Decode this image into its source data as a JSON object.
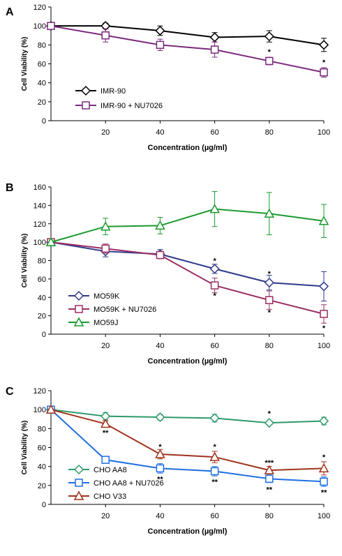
{
  "chart_data": [
    {
      "panel": "A",
      "type": "line",
      "x": [
        0,
        20,
        40,
        60,
        80,
        100
      ],
      "xticks": [
        "20",
        "40",
        "60",
        "80",
        "100"
      ],
      "xlabel": "Concentration (µg/ml)",
      "ylabel": "Cell Viability (%)",
      "ylim": [
        0,
        120
      ],
      "yticks": [
        "0",
        "20",
        "40",
        "60",
        "80",
        "100",
        "120"
      ],
      "legend_position": "bottom-left",
      "series": [
        {
          "name": "IMR-90",
          "color": "#000000",
          "marker": "diamond",
          "values": [
            100,
            100,
            95,
            88,
            89,
            80
          ],
          "errors": [
            0,
            3,
            5,
            5,
            6,
            7
          ]
        },
        {
          "name": "IMR-90 + NU7026",
          "color": "#7b2a7d",
          "marker": "square",
          "values": [
            100,
            90,
            80,
            75,
            63,
            51
          ],
          "errors": [
            0,
            7,
            6,
            8,
            4,
            5
          ]
        }
      ],
      "annotations": [
        {
          "x": 80,
          "y": 73,
          "text": "*"
        },
        {
          "x": 100,
          "y": 62,
          "text": "*"
        }
      ]
    },
    {
      "panel": "B",
      "type": "line",
      "x": [
        0,
        20,
        40,
        60,
        80,
        100
      ],
      "xticks": [
        "20",
        "40",
        "60",
        "80",
        "100"
      ],
      "xlabel": "Concentration (µg/ml)",
      "ylabel": "Cell Viability (%)",
      "ylim": [
        0,
        160
      ],
      "yticks": [
        "0",
        "20",
        "40",
        "60",
        "80",
        "100",
        "120",
        "140",
        "160"
      ],
      "legend_position": "bottom-left",
      "series": [
        {
          "name": "MO59K",
          "color": "#2e3a8c",
          "marker": "diamond",
          "values": [
            100,
            90,
            87,
            71,
            56,
            52
          ],
          "errors": [
            0,
            6,
            5,
            5,
            8,
            16
          ]
        },
        {
          "name": "MO59K + NU7026",
          "color": "#9a2f64",
          "marker": "square",
          "values": [
            100,
            93,
            86,
            53,
            37,
            22
          ],
          "errors": [
            0,
            5,
            4,
            8,
            10,
            10
          ]
        },
        {
          "name": "MO59J",
          "color": "#1a9a2e",
          "marker": "triangle",
          "values": [
            100,
            117,
            118,
            136,
            131,
            123
          ],
          "errors": [
            0,
            9,
            9,
            19,
            23,
            18
          ]
        }
      ],
      "annotations": [
        {
          "x": 60,
          "y": 80,
          "text": "*"
        },
        {
          "x": 60,
          "y": 42,
          "text": "*"
        },
        {
          "x": 80,
          "y": 66,
          "text": "*"
        },
        {
          "x": 80,
          "y": 24,
          "text": "*"
        },
        {
          "x": 100,
          "y": 7,
          "text": "*"
        }
      ]
    },
    {
      "panel": "C",
      "type": "line",
      "x": [
        0,
        20,
        40,
        60,
        80,
        100
      ],
      "xticks": [
        "20",
        "40",
        "60",
        "80",
        "100"
      ],
      "xlabel": "Concentration (µg/ml)",
      "ylabel": "Cell Viability (%)",
      "ylim": [
        0,
        120
      ],
      "yticks": [
        "0",
        "20",
        "40",
        "60",
        "80",
        "100",
        "120"
      ],
      "legend_position": "bottom-left",
      "series": [
        {
          "name": "CHO AA8",
          "color": "#2e9a6a",
          "marker": "diamond",
          "values": [
            100,
            93,
            92,
            91,
            86,
            88
          ],
          "errors": [
            0,
            4,
            3,
            4,
            2,
            4
          ]
        },
        {
          "name": "CHO AA8 + NU7026",
          "color": "#1f6fe0",
          "marker": "square",
          "values": [
            100,
            47,
            38,
            35,
            27,
            24
          ],
          "errors": [
            0,
            3,
            5,
            5,
            4,
            5
          ]
        },
        {
          "name": "CHO V33",
          "color": "#a0321c",
          "marker": "triangle",
          "values": [
            100,
            85,
            53,
            50,
            36,
            38
          ],
          "errors": [
            0,
            3,
            5,
            6,
            4,
            7
          ]
        }
      ],
      "annotations": [
        {
          "x": 20,
          "y": 76,
          "text": "**"
        },
        {
          "x": 40,
          "y": 61,
          "text": "*"
        },
        {
          "x": 40,
          "y": 27,
          "text": "**"
        },
        {
          "x": 60,
          "y": 61,
          "text": "*"
        },
        {
          "x": 60,
          "y": 24,
          "text": "**"
        },
        {
          "x": 80,
          "y": 96,
          "text": "*"
        },
        {
          "x": 80,
          "y": 44,
          "text": "***"
        },
        {
          "x": 80,
          "y": 16,
          "text": "**"
        },
        {
          "x": 100,
          "y": 50,
          "text": "*"
        },
        {
          "x": 100,
          "y": 13,
          "text": "**"
        }
      ]
    }
  ]
}
